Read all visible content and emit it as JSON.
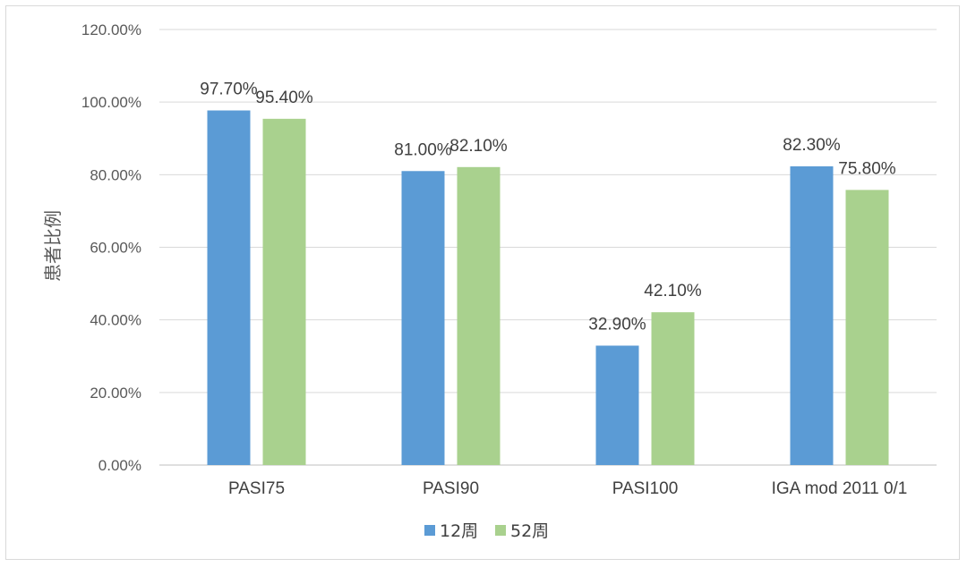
{
  "chart_data": {
    "type": "bar",
    "title": "",
    "ylabel": "患者比例",
    "xlabel": "",
    "ylim": [
      0,
      120
    ],
    "yticks": [
      "0.00%",
      "20.00%",
      "40.00%",
      "60.00%",
      "80.00%",
      "100.00%",
      "120.00%"
    ],
    "categories": [
      "PASI75",
      "PASI90",
      "PASI100",
      "IGA mod 2011 0/1"
    ],
    "series": [
      {
        "name": "12周",
        "color": "#5b9bd5",
        "values": [
          97.7,
          81.0,
          32.9,
          82.3
        ],
        "labels": [
          "97.70%",
          "81.00%",
          "32.90%",
          "82.30%"
        ]
      },
      {
        "name": "52周",
        "color": "#a9d18e",
        "values": [
          95.4,
          82.1,
          42.1,
          75.8
        ],
        "labels": [
          "95.40%",
          "82.10%",
          "42.10%",
          "75.80%"
        ]
      }
    ],
    "grid": true,
    "legend": "bottom-center"
  }
}
